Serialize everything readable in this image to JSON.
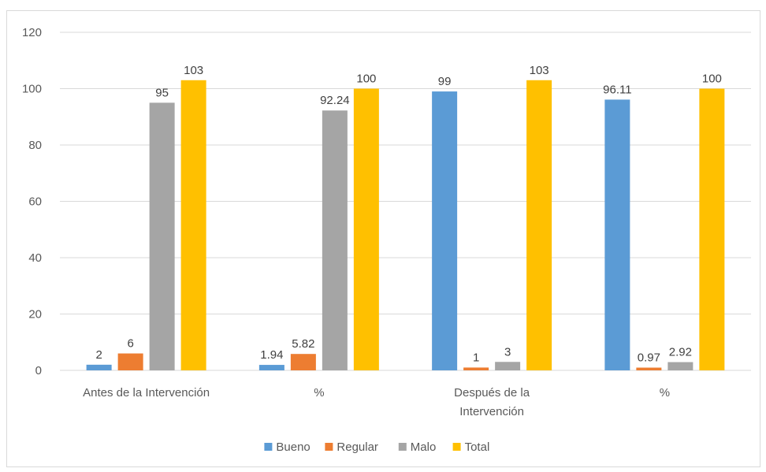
{
  "chart_data": {
    "type": "bar",
    "title": "",
    "xlabel": "",
    "ylabel": "",
    "ylim": [
      0,
      120
    ],
    "yticks": [
      0,
      20,
      40,
      60,
      80,
      100,
      120
    ],
    "grid": true,
    "legend_position": "bottom",
    "categories": [
      [
        "Antes de la Intervención"
      ],
      [
        "%"
      ],
      [
        "Después de la",
        "Intervención"
      ],
      [
        "%"
      ]
    ],
    "series": [
      {
        "name": "Bueno",
        "color": "#5b9bd5",
        "values": [
          2,
          1.94,
          99,
          96.11
        ],
        "labels": [
          "2",
          "1.94",
          "99",
          "96.11"
        ]
      },
      {
        "name": "Regular",
        "color": "#ed7d31",
        "values": [
          6,
          5.82,
          1,
          0.97
        ],
        "labels": [
          "6",
          "5.82",
          "1",
          "0.97"
        ]
      },
      {
        "name": "Malo",
        "color": "#a5a5a5",
        "values": [
          95,
          92.24,
          3,
          2.92
        ],
        "labels": [
          "95",
          "92.24",
          "3",
          "2.92"
        ]
      },
      {
        "name": "Total",
        "color": "#ffc000",
        "values": [
          103,
          100,
          103,
          100
        ],
        "labels": [
          "103",
          "100",
          "103",
          "100"
        ]
      }
    ]
  }
}
